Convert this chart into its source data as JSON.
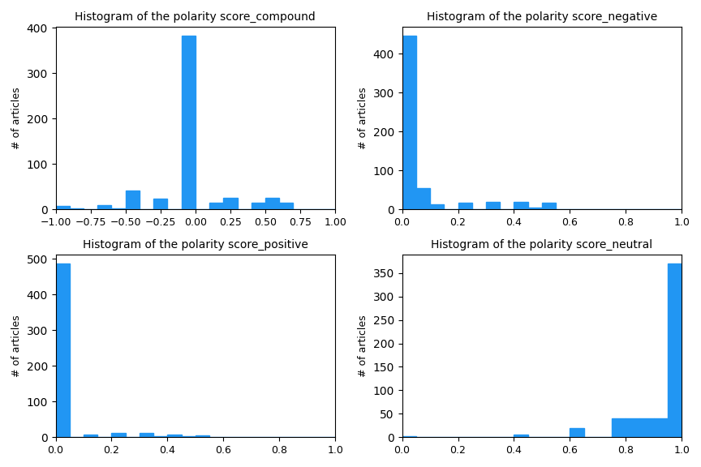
{
  "titles": [
    "Histogram of the polarity score_compound",
    "Histogram of the polarity score_negative",
    "Histogram of the polarity score_positive",
    "Histogram of the polarity score_neutral"
  ],
  "ylabel": "# of articles",
  "bar_color": "#2196F3",
  "compound": {
    "bin_edges": [
      -1.0,
      -0.9,
      -0.8,
      -0.7,
      -0.6,
      -0.5,
      -0.4,
      -0.3,
      -0.2,
      -0.1,
      0.0,
      0.1,
      0.2,
      0.3,
      0.4,
      0.5,
      0.6,
      0.7,
      0.8,
      0.9,
      1.0
    ],
    "counts": [
      7,
      3,
      0,
      10,
      3,
      42,
      0,
      24,
      0,
      383,
      0,
      14,
      25,
      0,
      15,
      25,
      15,
      0,
      0,
      0
    ]
  },
  "negative": {
    "bin_edges": [
      0.0,
      0.05,
      0.1,
      0.15,
      0.2,
      0.25,
      0.3,
      0.35,
      0.4,
      0.45,
      0.5,
      0.55,
      0.6,
      0.65,
      0.7,
      0.75,
      0.8,
      0.85,
      0.9,
      0.95,
      1.0
    ],
    "counts": [
      447,
      55,
      13,
      0,
      17,
      0,
      20,
      0,
      20,
      5,
      17,
      0,
      0,
      0,
      0,
      0,
      0,
      0,
      0,
      0
    ]
  },
  "positive": {
    "bin_edges": [
      0.0,
      0.05,
      0.1,
      0.15,
      0.2,
      0.25,
      0.3,
      0.35,
      0.4,
      0.45,
      0.5,
      0.55,
      0.6,
      0.65,
      0.7,
      0.75,
      0.8,
      0.85,
      0.9,
      0.95,
      1.0
    ],
    "counts": [
      487,
      0,
      8,
      0,
      12,
      0,
      12,
      3,
      8,
      4,
      6,
      0,
      0,
      0,
      0,
      0,
      0,
      0,
      0,
      0
    ]
  },
  "neutral": {
    "bin_edges": [
      0.0,
      0.05,
      0.1,
      0.15,
      0.2,
      0.25,
      0.3,
      0.35,
      0.4,
      0.45,
      0.5,
      0.55,
      0.6,
      0.65,
      0.7,
      0.75,
      0.8,
      0.85,
      0.9,
      0.95,
      1.0
    ],
    "counts": [
      3,
      0,
      0,
      0,
      0,
      0,
      0,
      0,
      5,
      0,
      0,
      0,
      20,
      0,
      0,
      40,
      40,
      40,
      40,
      370
    ]
  },
  "figsize": [
    8.64,
    5.76
  ],
  "dpi": 100
}
